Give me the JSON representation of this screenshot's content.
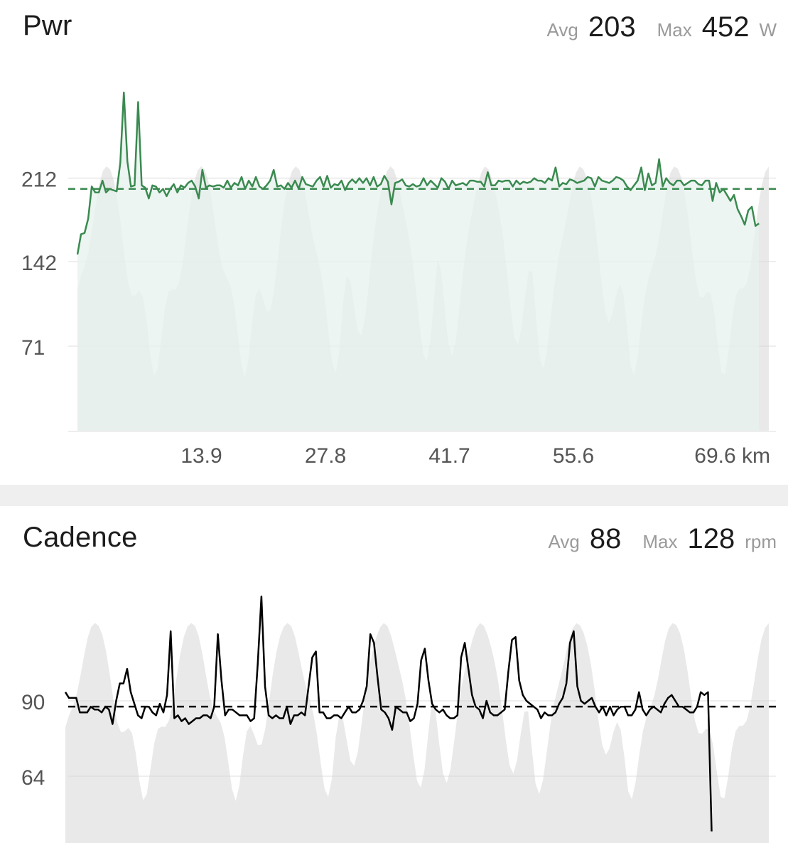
{
  "power": {
    "title": "Pwr",
    "avg_label": "Avg",
    "avg_value": "203",
    "max_label": "Max",
    "max_value": "452",
    "unit": "W"
  },
  "cadence": {
    "title": "Cadence",
    "avg_label": "Avg",
    "avg_value": "88",
    "max_label": "Max",
    "max_value": "128",
    "unit": "rpm"
  },
  "colors": {
    "power_line": "#3a8a50",
    "power_fill": "#e6f2ec",
    "elevation_fill": "#d7d7d7",
    "cadence_line": "#000000",
    "grid": "#eeeeee",
    "axis_text": "#555555"
  },
  "chart_data": [
    {
      "type": "line",
      "title": "Pwr",
      "unit": "W",
      "x_unit": "km",
      "xlim": [
        0,
        77.5
      ],
      "ylim": [
        0,
        290
      ],
      "y_ticks": [
        71,
        142,
        212
      ],
      "y_tick_labels": [
        "71",
        "142",
        "212"
      ],
      "x_ticks": [
        13.9,
        27.8,
        41.7,
        55.6,
        69.6
      ],
      "x_tick_labels": [
        "13.9",
        "27.8",
        "41.7",
        "55.6",
        "69.6 km"
      ],
      "average_line": 203,
      "series": [
        {
          "x_step": 0.4,
          "values": [
            148,
            165,
            166,
            178,
            205,
            200,
            200,
            210,
            200,
            203,
            202,
            201,
            225,
            284,
            226,
            205,
            206,
            276,
            206,
            204,
            195,
            206,
            205,
            200,
            203,
            197,
            203,
            207,
            200,
            206,
            204,
            208,
            210,
            205,
            195,
            219,
            204,
            206,
            205,
            206,
            206,
            204,
            210,
            204,
            208,
            206,
            213,
            203,
            210,
            205,
            213,
            205,
            203,
            206,
            210,
            219,
            205,
            206,
            203,
            208,
            204,
            210,
            203,
            213,
            207,
            206,
            205,
            210,
            213,
            205,
            214,
            204,
            207,
            206,
            210,
            202,
            208,
            211,
            208,
            212,
            208,
            212,
            206,
            213,
            205,
            207,
            214,
            209,
            190,
            208,
            209,
            211,
            206,
            205,
            207,
            205,
            206,
            212,
            206,
            210,
            207,
            204,
            212,
            209,
            203,
            210,
            206,
            207,
            208,
            206,
            210,
            210,
            209,
            209,
            205,
            217,
            206,
            206,
            210,
            209,
            210,
            210,
            205,
            210,
            207,
            209,
            208,
            209,
            212,
            210,
            210,
            208,
            212,
            210,
            221,
            205,
            208,
            207,
            211,
            210,
            208,
            209,
            210,
            213,
            212,
            205,
            213,
            210,
            209,
            208,
            210,
            213,
            212,
            210,
            205,
            202,
            206,
            210,
            221,
            202,
            216,
            206,
            208,
            228,
            205,
            212,
            208,
            206,
            210,
            210,
            206,
            208,
            210,
            210,
            207,
            206,
            210,
            210,
            193,
            208,
            200,
            203,
            198,
            193,
            198,
            186,
            180,
            173,
            185,
            188,
            172,
            174
          ]
        }
      ]
    },
    {
      "type": "line",
      "title": "Cadence",
      "unit": "rpm",
      "xlim": [
        0,
        77.5
      ],
      "ylim": [
        40,
        140
      ],
      "y_ticks": [
        64,
        90
      ],
      "y_tick_labels": [
        "64",
        "90"
      ],
      "average_line": 88,
      "series": [
        {
          "x_step": 0.4,
          "values": [
            93,
            91,
            91,
            91,
            86,
            86,
            86,
            88,
            87,
            87,
            86,
            88,
            87,
            82,
            90,
            96,
            96,
            101,
            93,
            89,
            85,
            84,
            88,
            88,
            86,
            85,
            89,
            86,
            92,
            114,
            84,
            85,
            83,
            84,
            82,
            83,
            84,
            84,
            85,
            85,
            84,
            88,
            113,
            97,
            85,
            87,
            87,
            86,
            85,
            85,
            85,
            83,
            84,
            103,
            126,
            95,
            85,
            84,
            85,
            84,
            84,
            88,
            82,
            85,
            85,
            86,
            85,
            95,
            105,
            107,
            86,
            86,
            84,
            84,
            85,
            85,
            84,
            86,
            88,
            86,
            86,
            87,
            90,
            95,
            113,
            110,
            98,
            87,
            86,
            84,
            80,
            88,
            87,
            86,
            86,
            83,
            84,
            89,
            104,
            108,
            97,
            89,
            87,
            86,
            87,
            85,
            84,
            84,
            85,
            105,
            110,
            101,
            92,
            88,
            87,
            84,
            90,
            86,
            85,
            85,
            86,
            87,
            100,
            111,
            112,
            97,
            92,
            90,
            89,
            88,
            87,
            84,
            86,
            85,
            85,
            86,
            89,
            91,
            96,
            110,
            114,
            95,
            90,
            89,
            90,
            91,
            88,
            86,
            88,
            85,
            88,
            85,
            87,
            88,
            88,
            85,
            85,
            87,
            93,
            87,
            85,
            87,
            88,
            87,
            86,
            89,
            91,
            92,
            90,
            88,
            88,
            87,
            86,
            86,
            88,
            93,
            92,
            93,
            45
          ]
        }
      ]
    }
  ]
}
